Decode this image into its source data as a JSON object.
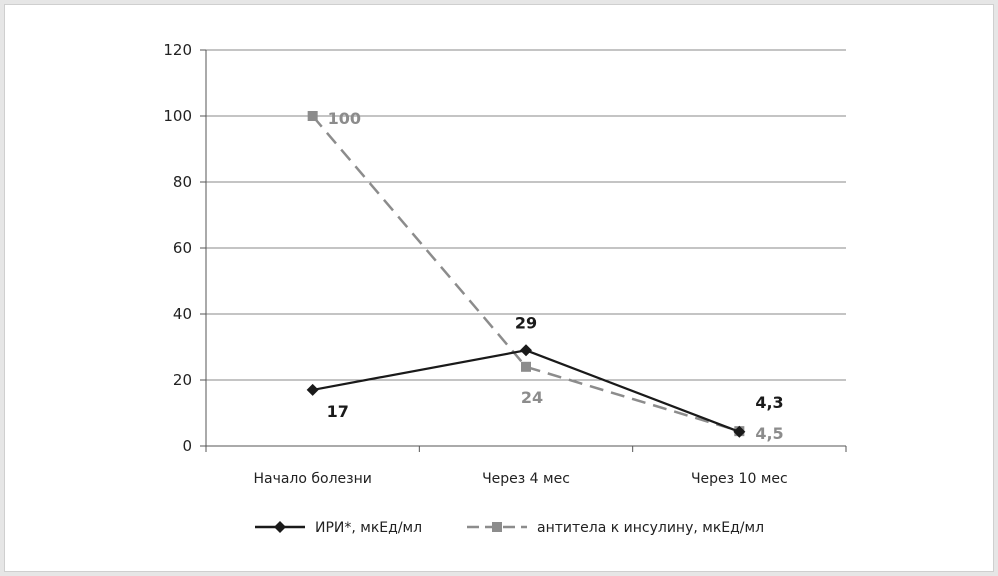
{
  "chart_data": {
    "type": "line",
    "title": "",
    "xlabel": "",
    "ylabel": "",
    "categories": [
      "Начало болезни",
      "Через 4 мес",
      "Через 10 мес"
    ],
    "ylim": [
      0,
      120
    ],
    "yticks": [
      "0",
      "20",
      "40",
      "60",
      "80",
      "100",
      "120"
    ],
    "ytick_values": [
      0,
      20,
      40,
      60,
      80,
      100,
      120
    ],
    "grid": true,
    "legend_position": "bottom",
    "series": [
      {
        "name": "ИРИ*, мкЕд/мл",
        "values": [
          17,
          29,
          4.3
        ],
        "labels": [
          "17",
          "29",
          "4,3"
        ],
        "color": "#1a1a1a",
        "marker": "diamond",
        "line_style": "solid"
      },
      {
        "name": "антитела к инсулину, мкЕд/мл",
        "values": [
          100,
          24,
          4.5
        ],
        "labels": [
          "100",
          "24",
          "4,5"
        ],
        "color": "#8c8c8c",
        "marker": "square",
        "line_style": "dashed"
      }
    ]
  }
}
